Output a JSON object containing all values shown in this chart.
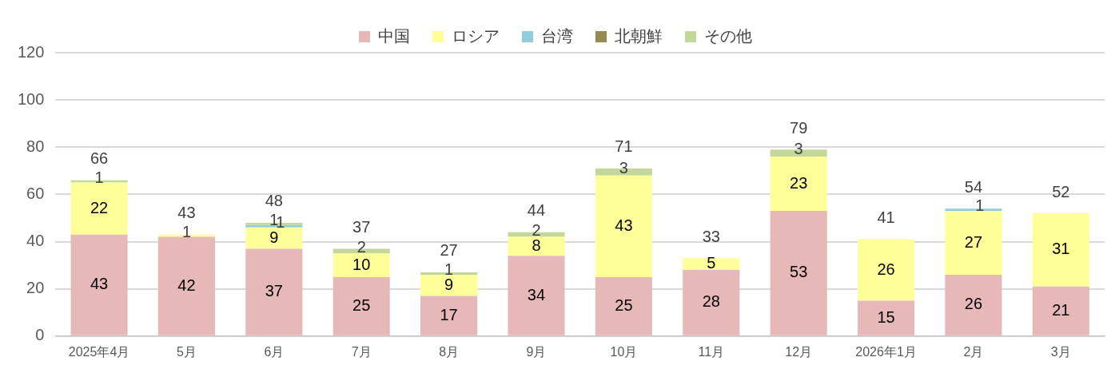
{
  "chart_data": {
    "type": "bar",
    "stacked": true,
    "categories": [
      "2025年4月",
      "5月",
      "6月",
      "7月",
      "8月",
      "9月",
      "10月",
      "11月",
      "12月",
      "2026年1月",
      "2月",
      "3月"
    ],
    "series": [
      {
        "name": "中国",
        "color": "#e6b8b7",
        "values": [
          43,
          42,
          37,
          25,
          17,
          34,
          25,
          28,
          53,
          15,
          26,
          21
        ]
      },
      {
        "name": "ロシア",
        "color": "#ffff99",
        "values": [
          22,
          1,
          9,
          10,
          9,
          8,
          43,
          5,
          23,
          26,
          27,
          31
        ]
      },
      {
        "name": "台湾",
        "color": "#92cddc",
        "values": [
          null,
          null,
          1,
          null,
          null,
          null,
          null,
          null,
          null,
          null,
          1,
          null
        ]
      },
      {
        "name": "北朝鮮",
        "color": "#948a54",
        "values": [
          null,
          null,
          null,
          null,
          null,
          null,
          null,
          null,
          null,
          null,
          null,
          null
        ]
      },
      {
        "name": "その他",
        "color": "#c4d79b",
        "values": [
          1,
          null,
          1,
          2,
          1,
          2,
          3,
          null,
          3,
          null,
          null,
          null
        ]
      }
    ],
    "totals": [
      "66",
      "43",
      "48",
      "37",
      "27",
      "44",
      "71",
      "33",
      "79",
      "41",
      "54",
      "52"
    ],
    "ylim": [
      0,
      120
    ],
    "yticks": [
      0,
      20,
      40,
      60,
      80,
      100,
      120
    ],
    "grid": "y",
    "legend": "top",
    "data_labels": true
  }
}
